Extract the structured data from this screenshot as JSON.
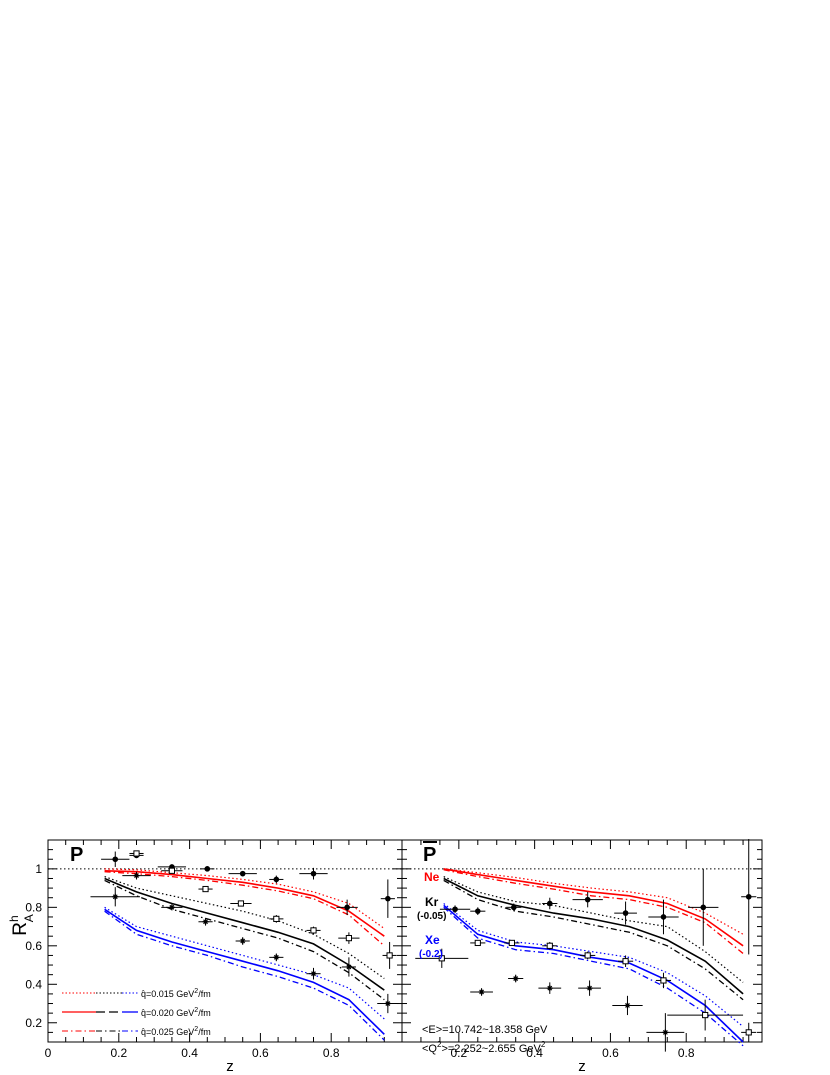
{
  "chart_data": {
    "type": "scatter",
    "ylabel": "R",
    "ylabel_sup": "h",
    "ylabel_sub": "A",
    "xlabel": "z",
    "ylim": [
      0.1,
      1.15
    ],
    "yticks": [
      "0.2",
      "0.4",
      "0.6",
      "0.8",
      "1"
    ],
    "xticks_left": [
      "0",
      "0.2",
      "0.4",
      "0.6",
      "0.8"
    ],
    "xticks_right": [
      "0.2",
      "0.4",
      "0.6",
      "0.8"
    ],
    "reference_line": 1,
    "colors": {
      "ne": "#ff0000",
      "kr": "#000000",
      "xe": "#0000ff"
    },
    "legend": {
      "items": [
        {
          "prefix": "q̂=0.015 GeV",
          "sup": "2",
          "suffix": "/fm",
          "style": "dotted"
        },
        {
          "prefix": "q̂=0.020 GeV",
          "sup": "2",
          "suffix": "/fm",
          "style": "dashed"
        },
        {
          "prefix": "q̂=0.025 GeV",
          "sup": "2",
          "suffix": "/fm",
          "style": "dashdot"
        }
      ]
    },
    "labels": {
      "ne": "Ne",
      "kr": "Kr",
      "kr_offset": "(-0.05)",
      "xe": "Xe",
      "xe_offset": "(-0.2)",
      "energy": "<E>=10.742~18.358 GeV",
      "q2_prefix": "<Q",
      "q2_sup": "2",
      "q2_suffix": ">=2.252~2.655 GeV",
      "q2_unit_sup": "2"
    },
    "panels": [
      {
        "title": "P",
        "overline": false,
        "xlim": [
          0,
          1.0
        ],
        "curves": [
          {
            "nucleus": "ne",
            "style": "dotted",
            "x": [
              0.16,
              0.25,
              0.35,
              0.45,
              0.55,
              0.65,
              0.75,
              0.85,
              0.95
            ],
            "y": [
              1.0,
              0.995,
              0.98,
              0.965,
              0.945,
              0.92,
              0.88,
              0.82,
              0.69
            ]
          },
          {
            "nucleus": "ne",
            "style": "solid",
            "x": [
              0.16,
              0.25,
              0.35,
              0.45,
              0.55,
              0.65,
              0.75,
              0.85,
              0.95
            ],
            "y": [
              0.99,
              0.985,
              0.97,
              0.95,
              0.93,
              0.9,
              0.86,
              0.78,
              0.65
            ]
          },
          {
            "nucleus": "ne",
            "style": "dashdot",
            "x": [
              0.16,
              0.25,
              0.35,
              0.45,
              0.55,
              0.65,
              0.75,
              0.85,
              0.95
            ],
            "y": [
              0.985,
              0.975,
              0.96,
              0.94,
              0.915,
              0.885,
              0.845,
              0.76,
              0.6
            ]
          },
          {
            "nucleus": "kr",
            "style": "dotted",
            "x": [
              0.16,
              0.25,
              0.35,
              0.45,
              0.55,
              0.65,
              0.75,
              0.85,
              0.95
            ],
            "y": [
              0.96,
              0.9,
              0.86,
              0.82,
              0.78,
              0.73,
              0.66,
              0.56,
              0.43
            ]
          },
          {
            "nucleus": "kr",
            "style": "solid",
            "x": [
              0.16,
              0.25,
              0.35,
              0.45,
              0.55,
              0.65,
              0.75,
              0.85,
              0.95
            ],
            "y": [
              0.95,
              0.88,
              0.82,
              0.77,
              0.72,
              0.67,
              0.61,
              0.5,
              0.37
            ]
          },
          {
            "nucleus": "kr",
            "style": "dashdot",
            "x": [
              0.16,
              0.25,
              0.35,
              0.45,
              0.55,
              0.65,
              0.75,
              0.85,
              0.95
            ],
            "y": [
              0.94,
              0.86,
              0.79,
              0.74,
              0.69,
              0.64,
              0.57,
              0.46,
              0.32
            ]
          },
          {
            "nucleus": "xe",
            "style": "dotted",
            "x": [
              0.16,
              0.25,
              0.35,
              0.45,
              0.55,
              0.65,
              0.75,
              0.85,
              0.95
            ],
            "y": [
              0.8,
              0.7,
              0.65,
              0.6,
              0.55,
              0.5,
              0.45,
              0.38,
              0.22
            ]
          },
          {
            "nucleus": "xe",
            "style": "solid",
            "x": [
              0.16,
              0.25,
              0.35,
              0.45,
              0.55,
              0.65,
              0.75,
              0.85,
              0.95
            ],
            "y": [
              0.79,
              0.68,
              0.62,
              0.57,
              0.52,
              0.47,
              0.41,
              0.32,
              0.14
            ]
          },
          {
            "nucleus": "xe",
            "style": "dashdot",
            "x": [
              0.16,
              0.25,
              0.35,
              0.45,
              0.55,
              0.65,
              0.75,
              0.85,
              0.95
            ],
            "y": [
              0.78,
              0.66,
              0.6,
              0.55,
              0.49,
              0.44,
              0.38,
              0.29,
              0.11
            ]
          }
        ],
        "points": [
          {
            "marker": "filled",
            "x": 0.19,
            "y": 1.05,
            "xerr": 0.04,
            "yerr": 0.04
          },
          {
            "marker": "filled",
            "x": 0.25,
            "y": 1.07,
            "xerr": 0.02,
            "yerr": 0.01
          },
          {
            "marker": "filled",
            "x": 0.35,
            "y": 1.01,
            "xerr": 0.04,
            "yerr": 0.01
          },
          {
            "marker": "filled",
            "x": 0.45,
            "y": 1.0,
            "xerr": 0.02,
            "yerr": 0.01
          },
          {
            "marker": "filled",
            "x": 0.55,
            "y": 0.975,
            "xerr": 0.04,
            "yerr": 0.01
          },
          {
            "marker": "filled",
            "x": 0.645,
            "y": 0.945,
            "xerr": 0.02,
            "yerr": 0.02
          },
          {
            "marker": "filled",
            "x": 0.75,
            "y": 0.975,
            "xerr": 0.04,
            "yerr": 0.03
          },
          {
            "marker": "filled",
            "x": 0.845,
            "y": 0.8,
            "xerr": 0.03,
            "yerr": 0.04
          },
          {
            "marker": "filled",
            "x": 0.96,
            "y": 0.845,
            "xerr": 0.02,
            "yerr": 0.1
          },
          {
            "marker": "open",
            "x": 0.25,
            "y": 1.08,
            "xerr": 0.02,
            "yerr": 0.01
          },
          {
            "marker": "open",
            "x": 0.35,
            "y": 0.99,
            "xerr": 0.03,
            "yerr": 0.01
          },
          {
            "marker": "open",
            "x": 0.445,
            "y": 0.895,
            "xerr": 0.02,
            "yerr": 0.01
          },
          {
            "marker": "open",
            "x": 0.545,
            "y": 0.82,
            "xerr": 0.03,
            "yerr": 0.01
          },
          {
            "marker": "open",
            "x": 0.645,
            "y": 0.74,
            "xerr": 0.02,
            "yerr": 0.02
          },
          {
            "marker": "open",
            "x": 0.75,
            "y": 0.68,
            "xerr": 0.02,
            "yerr": 0.02
          },
          {
            "marker": "open",
            "x": 0.85,
            "y": 0.64,
            "xerr": 0.03,
            "yerr": 0.03
          },
          {
            "marker": "open",
            "x": 0.965,
            "y": 0.55,
            "xerr": 0.02,
            "yerr": 0.07
          },
          {
            "marker": "star",
            "x": 0.19,
            "y": 0.855,
            "xerr": 0.07,
            "yerr": 0.05
          },
          {
            "marker": "star",
            "x": 0.25,
            "y": 0.965,
            "xerr": 0.04,
            "yerr": 0.02
          },
          {
            "marker": "star",
            "x": 0.35,
            "y": 0.8,
            "xerr": 0.03,
            "yerr": 0.01
          },
          {
            "marker": "star",
            "x": 0.445,
            "y": 0.725,
            "xerr": 0.02,
            "yerr": 0.02
          },
          {
            "marker": "star",
            "x": 0.55,
            "y": 0.625,
            "xerr": 0.02,
            "yerr": 0.02
          },
          {
            "marker": "star",
            "x": 0.645,
            "y": 0.54,
            "xerr": 0.02,
            "yerr": 0.02
          },
          {
            "marker": "star",
            "x": 0.75,
            "y": 0.455,
            "xerr": 0.02,
            "yerr": 0.03
          },
          {
            "marker": "star",
            "x": 0.85,
            "y": 0.49,
            "xerr": 0.02,
            "yerr": 0.05
          },
          {
            "marker": "star",
            "x": 0.96,
            "y": 0.3,
            "xerr": 0.03,
            "yerr": 0.05
          }
        ]
      },
      {
        "title": "P",
        "overline": true,
        "xlim": [
          0.05,
          1.0
        ],
        "curves": [
          {
            "nucleus": "ne",
            "style": "dotted",
            "x": [
              0.16,
              0.25,
              0.35,
              0.45,
              0.55,
              0.65,
              0.75,
              0.85,
              0.95
            ],
            "y": [
              1.0,
              0.98,
              0.955,
              0.925,
              0.9,
              0.88,
              0.85,
              0.77,
              0.66
            ]
          },
          {
            "nucleus": "ne",
            "style": "solid",
            "x": [
              0.16,
              0.25,
              0.35,
              0.45,
              0.55,
              0.65,
              0.75,
              0.85,
              0.95
            ],
            "y": [
              1.0,
              0.97,
              0.94,
              0.91,
              0.88,
              0.86,
              0.82,
              0.74,
              0.6
            ]
          },
          {
            "nucleus": "ne",
            "style": "dashdot",
            "x": [
              0.16,
              0.25,
              0.35,
              0.45,
              0.55,
              0.65,
              0.75,
              0.85,
              0.95
            ],
            "y": [
              0.995,
              0.96,
              0.925,
              0.895,
              0.86,
              0.84,
              0.8,
              0.72,
              0.56
            ]
          },
          {
            "nucleus": "kr",
            "style": "dotted",
            "x": [
              0.16,
              0.25,
              0.35,
              0.45,
              0.55,
              0.65,
              0.75,
              0.85,
              0.95
            ],
            "y": [
              0.96,
              0.88,
              0.83,
              0.81,
              0.77,
              0.73,
              0.7,
              0.57,
              0.41
            ]
          },
          {
            "nucleus": "kr",
            "style": "solid",
            "x": [
              0.16,
              0.25,
              0.35,
              0.45,
              0.55,
              0.65,
              0.75,
              0.85,
              0.95
            ],
            "y": [
              0.95,
              0.86,
              0.81,
              0.77,
              0.74,
              0.7,
              0.63,
              0.52,
              0.35
            ]
          },
          {
            "nucleus": "kr",
            "style": "dashdot",
            "x": [
              0.16,
              0.25,
              0.35,
              0.45,
              0.55,
              0.65,
              0.75,
              0.85,
              0.95
            ],
            "y": [
              0.94,
              0.84,
              0.78,
              0.75,
              0.71,
              0.67,
              0.6,
              0.48,
              0.32
            ]
          },
          {
            "nucleus": "xe",
            "style": "dotted",
            "x": [
              0.16,
              0.25,
              0.35,
              0.45,
              0.55,
              0.65,
              0.75,
              0.85,
              0.95
            ],
            "y": [
              0.82,
              0.68,
              0.62,
              0.6,
              0.57,
              0.54,
              0.46,
              0.34,
              0.18
            ]
          },
          {
            "nucleus": "xe",
            "style": "solid",
            "x": [
              0.16,
              0.25,
              0.35,
              0.45,
              0.55,
              0.65,
              0.75,
              0.85,
              0.95
            ],
            "y": [
              0.81,
              0.66,
              0.6,
              0.58,
              0.54,
              0.51,
              0.42,
              0.29,
              0.1
            ]
          },
          {
            "nucleus": "xe",
            "style": "dashdot",
            "x": [
              0.16,
              0.25,
              0.35,
              0.45,
              0.55,
              0.65,
              0.75,
              0.85,
              0.95
            ],
            "y": [
              0.8,
              0.64,
              0.58,
              0.56,
              0.52,
              0.48,
              0.38,
              0.25,
              0.08
            ]
          }
        ],
        "points": [
          {
            "marker": "filled",
            "x": 0.19,
            "y": 0.79,
            "xerr": 0.04,
            "yerr": 0.02
          },
          {
            "marker": "filled",
            "x": 0.25,
            "y": 0.78,
            "xerr": 0.02,
            "yerr": 0.02
          },
          {
            "marker": "filled",
            "x": 0.345,
            "y": 0.8,
            "xerr": 0.02,
            "yerr": 0.02
          },
          {
            "marker": "filled",
            "x": 0.44,
            "y": 0.82,
            "xerr": 0.02,
            "yerr": 0.03
          },
          {
            "marker": "filled",
            "x": 0.54,
            "y": 0.84,
            "xerr": 0.04,
            "yerr": 0.04
          },
          {
            "marker": "filled",
            "x": 0.64,
            "y": 0.77,
            "xerr": 0.03,
            "yerr": 0.06
          },
          {
            "marker": "filled",
            "x": 0.74,
            "y": 0.75,
            "xerr": 0.04,
            "yerr": 0.09
          },
          {
            "marker": "filled",
            "x": 0.845,
            "y": 0.8,
            "xerr": 0.04,
            "yerr": 0.2
          },
          {
            "marker": "filled",
            "x": 0.965,
            "y": 0.855,
            "xerr": 0.02,
            "yerr": 0.3
          },
          {
            "marker": "open",
            "x": 0.25,
            "y": 0.615,
            "xerr": 0.02,
            "yerr": 0.01
          },
          {
            "marker": "open",
            "x": 0.34,
            "y": 0.615,
            "xerr": 0.02,
            "yerr": 0.01
          },
          {
            "marker": "open",
            "x": 0.44,
            "y": 0.6,
            "xerr": 0.02,
            "yerr": 0.02
          },
          {
            "marker": "open",
            "x": 0.54,
            "y": 0.55,
            "xerr": 0.02,
            "yerr": 0.02
          },
          {
            "marker": "open",
            "x": 0.64,
            "y": 0.52,
            "xerr": 0.02,
            "yerr": 0.03
          },
          {
            "marker": "open",
            "x": 0.74,
            "y": 0.42,
            "xerr": 0.02,
            "yerr": 0.04
          },
          {
            "marker": "open",
            "x": 0.85,
            "y": 0.24,
            "xerr": 0.1,
            "yerr": 0.08
          },
          {
            "marker": "open",
            "x": 0.965,
            "y": 0.15,
            "xerr": 0.02,
            "yerr": 0.05
          },
          {
            "marker": "open",
            "x": 0.155,
            "y": 0.535,
            "xerr": 0.07,
            "yerr": 0.05
          },
          {
            "marker": "star",
            "x": 0.26,
            "y": 0.36,
            "xerr": 0.03,
            "yerr": 0.02
          },
          {
            "marker": "star",
            "x": 0.35,
            "y": 0.43,
            "xerr": 0.02,
            "yerr": 0.02
          },
          {
            "marker": "star",
            "x": 0.44,
            "y": 0.38,
            "xerr": 0.03,
            "yerr": 0.03
          },
          {
            "marker": "star",
            "x": 0.545,
            "y": 0.38,
            "xerr": 0.03,
            "yerr": 0.04
          },
          {
            "marker": "star",
            "x": 0.645,
            "y": 0.29,
            "xerr": 0.04,
            "yerr": 0.05
          },
          {
            "marker": "star",
            "x": 0.745,
            "y": 0.15,
            "xerr": 0.05,
            "yerr": 0.1
          }
        ]
      }
    ]
  }
}
